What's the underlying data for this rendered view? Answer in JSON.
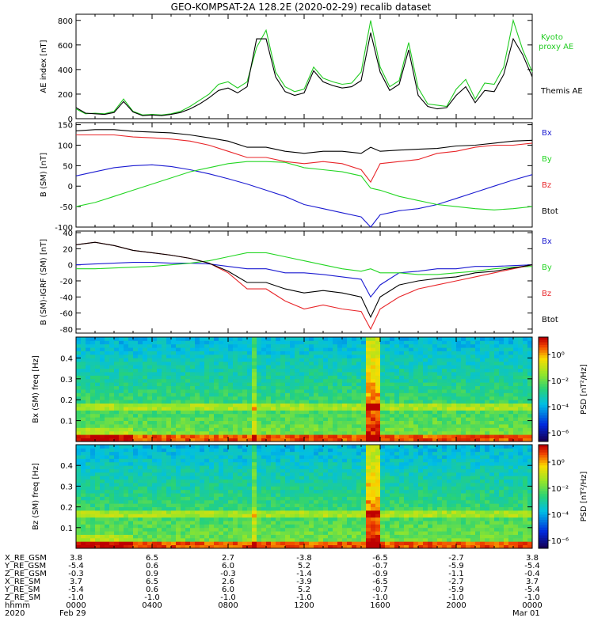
{
  "title": "GEO-KOMPSAT-2A 128.2E (2020-02-29) recalib dataset",
  "colors": {
    "black": "#000000",
    "red": "#e8262a",
    "green": "#23d623",
    "blue": "#1b1bd1",
    "kyoto": "#22cc22"
  },
  "chart_data": [
    {
      "type": "line",
      "ylabel": "AE index [nT]",
      "ylim": [
        0,
        850
      ],
      "yticks": [
        0,
        200,
        400,
        600,
        800
      ],
      "x_hours": [
        0,
        0.5,
        1,
        1.5,
        2,
        2.5,
        3,
        3.5,
        4,
        4.5,
        5,
        5.5,
        6,
        6.5,
        7,
        7.5,
        8,
        8.5,
        9,
        9.5,
        10,
        10.5,
        11,
        11.5,
        12,
        12.5,
        13,
        13.5,
        14,
        14.5,
        15,
        15.5,
        16,
        16.5,
        17,
        17.5,
        18,
        18.5,
        19,
        19.5,
        20,
        20.5,
        21,
        21.5,
        22,
        22.5,
        23,
        23.5,
        24
      ],
      "series": [
        {
          "name": "Kyoto proxy AE",
          "color_key": "kyoto",
          "values": [
            80,
            40,
            45,
            40,
            60,
            160,
            60,
            30,
            35,
            30,
            40,
            60,
            100,
            150,
            200,
            280,
            300,
            250,
            300,
            580,
            720,
            380,
            260,
            220,
            240,
            420,
            330,
            300,
            280,
            290,
            380,
            800,
            420,
            260,
            310,
            620,
            250,
            120,
            110,
            100,
            240,
            320,
            160,
            290,
            280,
            420,
            800,
            560,
            380
          ]
        },
        {
          "name": "Themis AE",
          "color_key": "black",
          "values": [
            90,
            45,
            40,
            35,
            50,
            140,
            55,
            25,
            30,
            25,
            35,
            50,
            80,
            120,
            170,
            230,
            250,
            210,
            260,
            650,
            650,
            340,
            220,
            190,
            210,
            390,
            300,
            270,
            250,
            260,
            310,
            700,
            380,
            230,
            280,
            560,
            190,
            100,
            80,
            90,
            190,
            260,
            130,
            230,
            220,
            360,
            650,
            520,
            340
          ]
        }
      ]
    },
    {
      "type": "line",
      "ylabel": "B (SM) [nT]",
      "ylim": [
        -100,
        155
      ],
      "yticks": [
        -100,
        -50,
        0,
        50,
        100,
        150
      ],
      "x_hours": [
        0,
        1,
        2,
        3,
        4,
        5,
        6,
        7,
        8,
        9,
        10,
        11,
        12,
        13,
        14,
        15,
        15.5,
        16,
        17,
        18,
        19,
        20,
        21,
        22,
        23,
        24
      ],
      "series": [
        {
          "name": "Bx",
          "color_key": "blue",
          "values": [
            25,
            35,
            45,
            50,
            52,
            48,
            40,
            30,
            18,
            5,
            -10,
            -25,
            -45,
            -55,
            -65,
            -75,
            -100,
            -70,
            -60,
            -55,
            -45,
            -30,
            -15,
            0,
            15,
            28
          ]
        },
        {
          "name": "By",
          "color_key": "green",
          "values": [
            -50,
            -40,
            -25,
            -10,
            5,
            20,
            35,
            45,
            55,
            60,
            60,
            58,
            45,
            40,
            35,
            25,
            -5,
            -10,
            -25,
            -35,
            -45,
            -50,
            -55,
            -58,
            -55,
            -50
          ]
        },
        {
          "name": "Bz",
          "color_key": "red",
          "values": [
            125,
            125,
            125,
            120,
            118,
            115,
            110,
            100,
            85,
            70,
            70,
            60,
            55,
            60,
            55,
            40,
            10,
            55,
            60,
            65,
            80,
            85,
            95,
            100,
            100,
            105
          ]
        },
        {
          "name": "Btot",
          "color_key": "black",
          "values": [
            135,
            138,
            138,
            134,
            132,
            130,
            125,
            118,
            110,
            95,
            95,
            85,
            80,
            85,
            85,
            80,
            95,
            85,
            88,
            90,
            92,
            98,
            100,
            105,
            110,
            112
          ]
        }
      ]
    },
    {
      "type": "line",
      "ylabel": "B (SM)-IGRF (SM) [nT]",
      "ylim": [
        -85,
        42
      ],
      "yticks": [
        -80,
        -60,
        -40,
        -20,
        0,
        20,
        40
      ],
      "x_hours": [
        0,
        1,
        2,
        3,
        4,
        5,
        6,
        7,
        8,
        9,
        10,
        11,
        12,
        13,
        14,
        15,
        15.5,
        16,
        17,
        18,
        19,
        20,
        21,
        22,
        23,
        24
      ],
      "series": [
        {
          "name": "Bx",
          "color_key": "blue",
          "values": [
            0,
            1,
            2,
            3,
            3,
            2,
            2,
            1,
            -2,
            -5,
            -5,
            -10,
            -10,
            -12,
            -15,
            -18,
            -40,
            -25,
            -10,
            -8,
            -5,
            -5,
            -2,
            -2,
            -1,
            0
          ]
        },
        {
          "name": "By",
          "color_key": "green",
          "values": [
            -5,
            -5,
            -4,
            -3,
            -2,
            0,
            2,
            5,
            10,
            15,
            15,
            10,
            5,
            0,
            -5,
            -8,
            -5,
            -10,
            -10,
            -12,
            -12,
            -10,
            -8,
            -5,
            -3,
            -2
          ]
        },
        {
          "name": "Bz",
          "color_key": "red",
          "values": [
            25,
            28,
            24,
            18,
            15,
            12,
            8,
            2,
            -10,
            -30,
            -30,
            -45,
            -55,
            -50,
            -55,
            -58,
            -80,
            -55,
            -40,
            -30,
            -25,
            -20,
            -15,
            -10,
            -5,
            0
          ]
        },
        {
          "name": "Btot",
          "color_key": "black",
          "values": [
            25,
            28,
            24,
            18,
            15,
            12,
            8,
            2,
            -8,
            -22,
            -22,
            -30,
            -35,
            -32,
            -35,
            -40,
            -65,
            -40,
            -25,
            -20,
            -17,
            -15,
            -10,
            -8,
            -4,
            0
          ]
        }
      ]
    },
    {
      "type": "heatmap",
      "ylabel": "Bx (SM) freq [Hz]",
      "ylim": [
        0,
        0.5
      ],
      "yticks": [
        0.1,
        0.2,
        0.3,
        0.4
      ],
      "colorbar_label": "PSD [nT²/Hz]",
      "colorbar_ticks": [
        "10⁰",
        "10⁻²",
        "10⁻⁴",
        "10⁻⁶"
      ]
    },
    {
      "type": "heatmap",
      "ylabel": "Bz (SM) freq [Hz]",
      "ylim": [
        0,
        0.5
      ],
      "yticks": [
        0.1,
        0.2,
        0.3,
        0.4
      ],
      "colorbar_label": "PSD [nT²/Hz]",
      "colorbar_ticks": [
        "10⁰",
        "10⁻²",
        "10⁻⁴",
        "10⁻⁶"
      ]
    }
  ],
  "ephemeris": {
    "row_labels": [
      "X_RE_GSM",
      "Y_RE_GSM",
      "Z_RE_GSM",
      "X_RE_SM",
      "Y_RE_SM",
      "Z_RE_SM",
      "hhmm",
      "2020"
    ],
    "columns": [
      [
        "3.8",
        "-5.4",
        "-0.3",
        "3.7",
        "-5.4",
        "-1.0",
        "0000",
        "Feb 29"
      ],
      [
        "6.5",
        "0.6",
        "0.9",
        "6.5",
        "0.6",
        "-1.0",
        "0400",
        ""
      ],
      [
        "2.7",
        "6.0",
        "-0.3",
        "2.6",
        "6.0",
        "-1.0",
        "0800",
        ""
      ],
      [
        "-3.8",
        "5.2",
        "-1.4",
        "-3.9",
        "5.2",
        "-1.0",
        "1200",
        ""
      ],
      [
        "-6.5",
        "-0.7",
        "-0.9",
        "-6.5",
        "-0.7",
        "-1.0",
        "1600",
        ""
      ],
      [
        "-2.7",
        "-5.9",
        "-1.1",
        "-2.7",
        "-5.9",
        "-1.0",
        "2000",
        ""
      ],
      [
        "3.8",
        "-5.4",
        "-0.4",
        "3.7",
        "-5.4",
        "-1.0",
        "0000",
        "Mar 01"
      ]
    ]
  }
}
